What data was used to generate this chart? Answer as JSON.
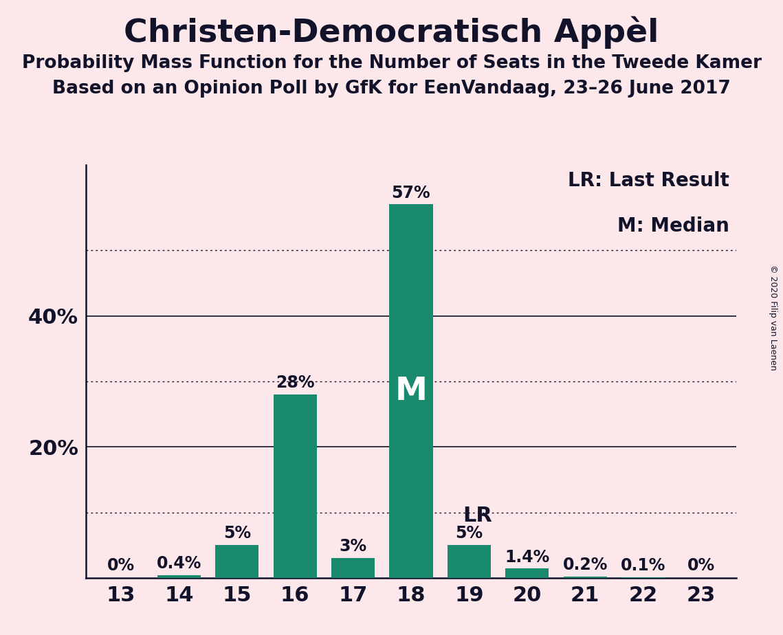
{
  "title": "Christen-Democratisch Appèl",
  "subtitle1": "Probability Mass Function for the Number of Seats in the Tweede Kamer",
  "subtitle2": "Based on an Opinion Poll by GfK for EenVandaag, 23–26 June 2017",
  "copyright": "© 2020 Filip van Laenen",
  "categories": [
    13,
    14,
    15,
    16,
    17,
    18,
    19,
    20,
    21,
    22,
    23
  ],
  "values": [
    0.0,
    0.4,
    5.0,
    28.0,
    3.0,
    57.0,
    5.0,
    1.4,
    0.2,
    0.1,
    0.0
  ],
  "bar_labels": [
    "0%",
    "0.4%",
    "5%",
    "28%",
    "3%",
    "57%",
    "5%",
    "1.4%",
    "0.2%",
    "0.1%",
    "0%"
  ],
  "bar_color": "#1a8a6e",
  "background_color": "#fce8ea",
  "text_color": "#12122a",
  "median_idx": 5,
  "median_label": "M",
  "lr_idx": 6,
  "lr_label": "LR",
  "yticks": [
    20,
    40
  ],
  "dotted_lines": [
    10,
    30,
    50
  ],
  "ylim": [
    0,
    63
  ],
  "legend_lr": "LR: Last Result",
  "legend_m": "M: Median",
  "title_fontsize": 34,
  "subtitle_fontsize": 19,
  "bar_label_fontsize": 17,
  "axis_label_fontsize": 22
}
